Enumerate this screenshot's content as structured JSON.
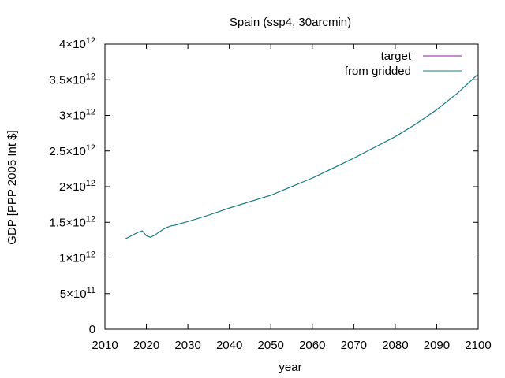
{
  "chart_data": {
    "type": "line",
    "title": "Spain (ssp4, 30arcmin)",
    "xlabel": "year",
    "ylabel": "GDP [PPP 2005 Int $]",
    "xlim": [
      2010,
      2100
    ],
    "ylim": [
      0,
      4000000000000
    ],
    "grid": false,
    "legend_position": "top-right",
    "x_ticks": [
      {
        "value": 2010,
        "label": "2010"
      },
      {
        "value": 2020,
        "label": "2020"
      },
      {
        "value": 2030,
        "label": "2030"
      },
      {
        "value": 2040,
        "label": "2040"
      },
      {
        "value": 2050,
        "label": "2050"
      },
      {
        "value": 2060,
        "label": "2060"
      },
      {
        "value": 2070,
        "label": "2070"
      },
      {
        "value": 2080,
        "label": "2080"
      },
      {
        "value": 2090,
        "label": "2090"
      },
      {
        "value": 2100,
        "label": "2100"
      }
    ],
    "y_ticks": [
      {
        "value": 0,
        "mantissa": "0",
        "exponent": ""
      },
      {
        "value": 500000000000,
        "mantissa": "5×10",
        "exponent": "11"
      },
      {
        "value": 1000000000000,
        "mantissa": "1×10",
        "exponent": "12"
      },
      {
        "value": 1500000000000,
        "mantissa": "1.5×10",
        "exponent": "12"
      },
      {
        "value": 2000000000000,
        "mantissa": "2×10",
        "exponent": "12"
      },
      {
        "value": 2500000000000,
        "mantissa": "2.5×10",
        "exponent": "12"
      },
      {
        "value": 3000000000000,
        "mantissa": "3×10",
        "exponent": "12"
      },
      {
        "value": 3500000000000,
        "mantissa": "3.5×10",
        "exponent": "12"
      },
      {
        "value": 4000000000000,
        "mantissa": "4×10",
        "exponent": "12"
      }
    ],
    "x": [
      2015,
      2016,
      2017,
      2018,
      2019,
      2020,
      2021,
      2022,
      2023,
      2024,
      2025,
      2026,
      2027,
      2028,
      2030,
      2035,
      2040,
      2045,
      2050,
      2055,
      2060,
      2065,
      2070,
      2075,
      2080,
      2085,
      2090,
      2095,
      2100
    ],
    "series": [
      {
        "name": "target",
        "color": "#8b1a9b",
        "values": [
          1270000000000.0,
          1300000000000.0,
          1330000000000.0,
          1360000000000.0,
          1380000000000.0,
          1310000000000.0,
          1290000000000.0,
          1320000000000.0,
          1360000000000.0,
          1400000000000.0,
          1430000000000.0,
          1450000000000.0,
          1460000000000.0,
          1480000000000.0,
          1510000000000.0,
          1600000000000.0,
          1700000000000.0,
          1790000000000.0,
          1880000000000.0,
          2000000000000.0,
          2120000000000.0,
          2260000000000.0,
          2400000000000.0,
          2550000000000.0,
          2700000000000.0,
          2880000000000.0,
          3080000000000.0,
          3310000000000.0,
          3580000000000.0
        ]
      },
      {
        "name": "from gridded",
        "color": "#00897b",
        "values": [
          1270000000000.0,
          1300000000000.0,
          1330000000000.0,
          1360000000000.0,
          1380000000000.0,
          1310000000000.0,
          1290000000000.0,
          1320000000000.0,
          1360000000000.0,
          1400000000000.0,
          1430000000000.0,
          1450000000000.0,
          1460000000000.0,
          1480000000000.0,
          1510000000000.0,
          1600000000000.0,
          1700000000000.0,
          1790000000000.0,
          1880000000000.0,
          2000000000000.0,
          2120000000000.0,
          2260000000000.0,
          2400000000000.0,
          2550000000000.0,
          2700000000000.0,
          2880000000000.0,
          3080000000000.0,
          3310000000000.0,
          3580000000000.0
        ]
      }
    ]
  }
}
